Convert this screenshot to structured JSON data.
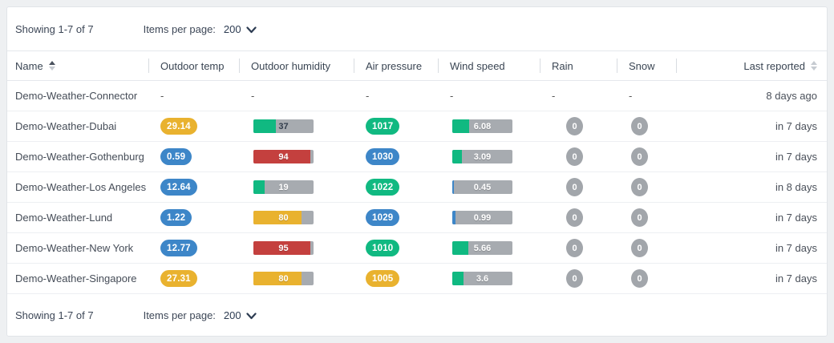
{
  "pagination": {
    "showing": "Showing 1-7 of 7",
    "items_per_page_label": "Items per page:",
    "items_per_page_value": "200"
  },
  "colors": {
    "amber": "#e9b22f",
    "blue": "#3d86c8",
    "green": "#10b981",
    "red": "#c4403e",
    "gray_badge": "#a2a6ab",
    "bar_track": "#a7abb0",
    "dark_label": "#323d4c"
  },
  "table": {
    "columns": [
      {
        "label": "Name",
        "sort": "asc"
      },
      {
        "label": "Outdoor temp"
      },
      {
        "label": "Outdoor humidity"
      },
      {
        "label": "Air pressure"
      },
      {
        "label": "Wind speed"
      },
      {
        "label": "Rain"
      },
      {
        "label": "Snow"
      },
      {
        "label": "Last reported",
        "sort": "both",
        "align": "right"
      }
    ],
    "rows": [
      {
        "name": "Demo-Weather-Connector",
        "outdoor_temp": {
          "type": "dash",
          "value": "-"
        },
        "outdoor_humidity": {
          "type": "dash",
          "value": "-"
        },
        "air_pressure": {
          "type": "dash",
          "value": "-"
        },
        "wind_speed": {
          "type": "dash",
          "value": "-"
        },
        "rain": {
          "type": "dash",
          "value": "-"
        },
        "snow": {
          "type": "dash",
          "value": "-"
        },
        "last_reported": "8 days ago"
      },
      {
        "name": "Demo-Weather-Dubai",
        "outdoor_temp": {
          "type": "pill",
          "value": "29.14",
          "color": "amber"
        },
        "outdoor_humidity": {
          "type": "bar",
          "value": "37",
          "pct": 37,
          "color": "green",
          "dark_label": true
        },
        "air_pressure": {
          "type": "pill",
          "value": "1017",
          "color": "green"
        },
        "wind_speed": {
          "type": "bar",
          "value": "6.08",
          "pct": 28,
          "color": "green"
        },
        "rain": {
          "type": "circle",
          "value": "0"
        },
        "snow": {
          "type": "circle",
          "value": "0"
        },
        "last_reported": "in 7 days"
      },
      {
        "name": "Demo-Weather-Gothenburg",
        "outdoor_temp": {
          "type": "pill",
          "value": "0.59",
          "color": "blue"
        },
        "outdoor_humidity": {
          "type": "bar",
          "value": "94",
          "pct": 94,
          "color": "red"
        },
        "air_pressure": {
          "type": "pill",
          "value": "1030",
          "color": "blue"
        },
        "wind_speed": {
          "type": "bar",
          "value": "3.09",
          "pct": 16,
          "color": "green"
        },
        "rain": {
          "type": "circle",
          "value": "0"
        },
        "snow": {
          "type": "circle",
          "value": "0"
        },
        "last_reported": "in 7 days"
      },
      {
        "name": "Demo-Weather-Los Angeles",
        "outdoor_temp": {
          "type": "pill",
          "value": "12.64",
          "color": "blue"
        },
        "outdoor_humidity": {
          "type": "bar",
          "value": "19",
          "pct": 19,
          "color": "green"
        },
        "air_pressure": {
          "type": "pill",
          "value": "1022",
          "color": "green"
        },
        "wind_speed": {
          "type": "bar",
          "value": "0.45",
          "pct": 3,
          "color": "blue"
        },
        "rain": {
          "type": "circle",
          "value": "0"
        },
        "snow": {
          "type": "circle",
          "value": "0"
        },
        "last_reported": "in 8 days"
      },
      {
        "name": "Demo-Weather-Lund",
        "outdoor_temp": {
          "type": "pill",
          "value": "1.22",
          "color": "blue"
        },
        "outdoor_humidity": {
          "type": "bar",
          "value": "80",
          "pct": 80,
          "color": "amber"
        },
        "air_pressure": {
          "type": "pill",
          "value": "1029",
          "color": "blue"
        },
        "wind_speed": {
          "type": "bar",
          "value": "0.99",
          "pct": 5,
          "color": "blue"
        },
        "rain": {
          "type": "circle",
          "value": "0"
        },
        "snow": {
          "type": "circle",
          "value": "0"
        },
        "last_reported": "in 7 days"
      },
      {
        "name": "Demo-Weather-New York",
        "outdoor_temp": {
          "type": "pill",
          "value": "12.77",
          "color": "blue"
        },
        "outdoor_humidity": {
          "type": "bar",
          "value": "95",
          "pct": 95,
          "color": "red"
        },
        "air_pressure": {
          "type": "pill",
          "value": "1010",
          "color": "green"
        },
        "wind_speed": {
          "type": "bar",
          "value": "5.66",
          "pct": 27,
          "color": "green"
        },
        "rain": {
          "type": "circle",
          "value": "0"
        },
        "snow": {
          "type": "circle",
          "value": "0"
        },
        "last_reported": "in 7 days"
      },
      {
        "name": "Demo-Weather-Singapore",
        "outdoor_temp": {
          "type": "pill",
          "value": "27.31",
          "color": "amber"
        },
        "outdoor_humidity": {
          "type": "bar",
          "value": "80",
          "pct": 80,
          "color": "amber"
        },
        "air_pressure": {
          "type": "pill",
          "value": "1005",
          "color": "amber"
        },
        "wind_speed": {
          "type": "bar",
          "value": "3.6",
          "pct": 18,
          "color": "green"
        },
        "rain": {
          "type": "circle",
          "value": "0"
        },
        "snow": {
          "type": "circle",
          "value": "0"
        },
        "last_reported": "in 7 days"
      }
    ]
  }
}
